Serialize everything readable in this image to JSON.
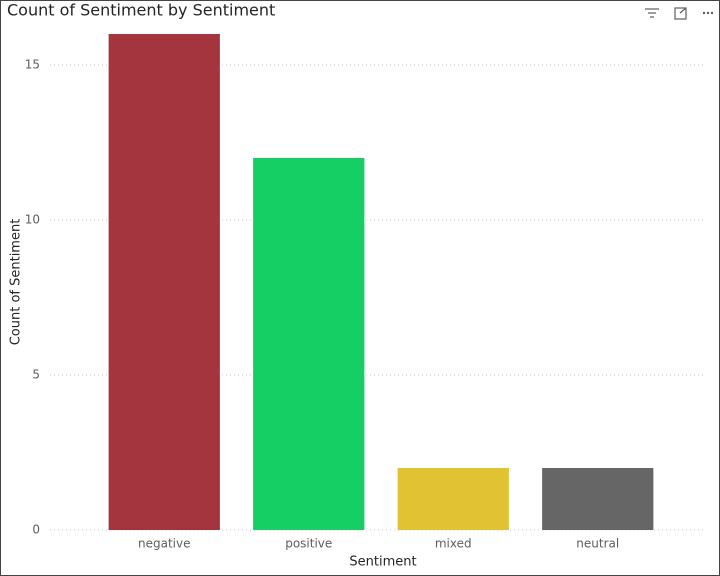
{
  "chart_data": {
    "type": "bar",
    "title": "Count of Sentiment by Sentiment",
    "x_label": "Sentiment",
    "y_label": "Count of Sentiment",
    "categories": [
      "negative",
      "positive",
      "mixed",
      "neutral"
    ],
    "values": [
      16,
      12,
      2,
      2
    ],
    "colors": [
      "#a4343e",
      "#15cf64",
      "#e0c232",
      "#666666"
    ],
    "ylim": [
      0,
      16
    ],
    "yticks": [
      0,
      5,
      10,
      15
    ],
    "grid": true
  }
}
